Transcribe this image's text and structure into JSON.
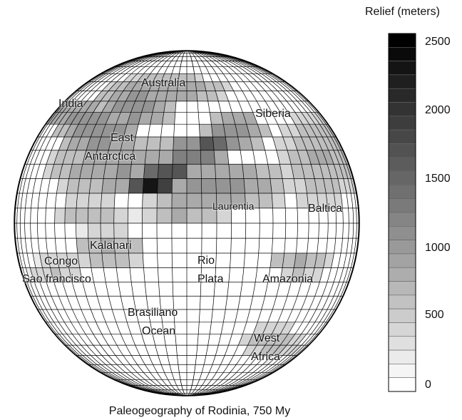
{
  "map": {
    "regions": [
      "Australia",
      "India",
      "Siberia",
      "East",
      "Antarctica",
      "Laurentia",
      "Baltica",
      "Kalahari",
      "Congo",
      "Sao francisco",
      "Rio",
      "Plata",
      "Amazonia",
      "Brasiliano",
      "Ocean",
      "West",
      "Africa"
    ],
    "caption": "Paleogeography of  Rodinia, 750 My"
  },
  "legend": {
    "title": "Relief (meters)",
    "ticks": [
      "2500",
      "2000",
      "1500",
      "1000",
      "500",
      "0"
    ],
    "range": [
      0,
      2600
    ],
    "color_low": "#ffffff",
    "color_high": "#000000"
  }
}
